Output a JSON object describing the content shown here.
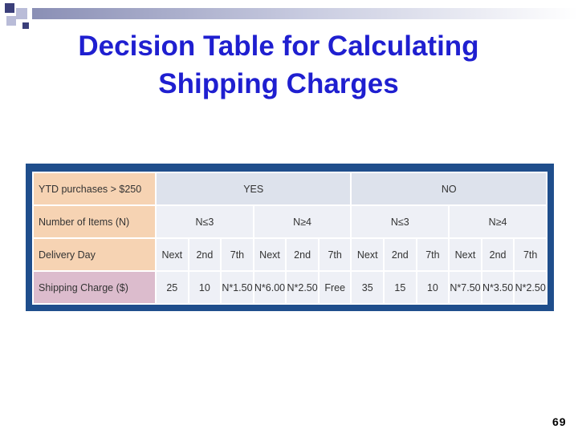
{
  "header": {
    "title": "Decision Table for Calculating Shipping Charges"
  },
  "table": {
    "rows": [
      {
        "label": "YTD purchases > $250",
        "cells": [
          "YES",
          "NO"
        ]
      },
      {
        "label": "Number of Items (N)",
        "cells": [
          "N≤3",
          "N≥4",
          "N≤3",
          "N≥4"
        ]
      },
      {
        "label": "Delivery Day",
        "cells": [
          "Next",
          "2nd",
          "7th",
          "Next",
          "2nd",
          "7th",
          "Next",
          "2nd",
          "7th",
          "Next",
          "2nd",
          "7th"
        ]
      },
      {
        "label": "Shipping Charge ($)",
        "cells": [
          "25",
          "10",
          "N*1.50",
          "N*6.00",
          "N*2.50",
          "Free",
          "35",
          "15",
          "10",
          "N*7.50",
          "N*3.50",
          "N*2.50"
        ]
      }
    ]
  },
  "footer": {
    "page_number": "69"
  }
}
